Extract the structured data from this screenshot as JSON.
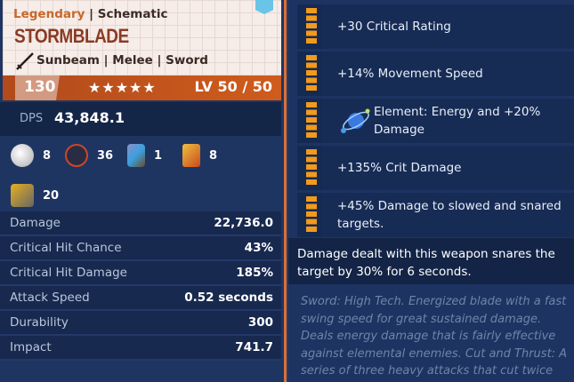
{
  "header": {
    "rarity": "Legendary",
    "separator": "|",
    "type": "Schematic",
    "name": "STORMBLADE",
    "subtitle": "Sunbeam | Melee | Sword",
    "power": "130",
    "stars": "★★★★★",
    "star_count": 5,
    "level": "LV 50 / 50"
  },
  "dps": {
    "label": "DPS",
    "value": "43,848.1"
  },
  "materials": [
    {
      "icon": "silver-ore-icon",
      "count": "8"
    },
    {
      "icon": "active-powercell-icon",
      "count": "36"
    },
    {
      "icon": "storm-shard-icon",
      "count": "1"
    },
    {
      "icon": "sunbeam-crystal-icon",
      "count": "8"
    },
    {
      "icon": "mechanical-parts-icon",
      "count": "20"
    }
  ],
  "stats": [
    {
      "label": "Damage",
      "value": "22,736.0"
    },
    {
      "label": "Critical Hit Chance",
      "value": "43%"
    },
    {
      "label": "Critical Hit Damage",
      "value": "185%"
    },
    {
      "label": "Attack Speed",
      "value": "0.52 seconds"
    },
    {
      "label": "Durability",
      "value": "300"
    },
    {
      "label": "Impact",
      "value": "741.7"
    }
  ],
  "perks": [
    {
      "text": "+30 Critical Rating"
    },
    {
      "text": "+14% Movement Speed"
    },
    {
      "text": "Element: Energy and +20% Damage",
      "icon": "energy-element-icon"
    },
    {
      "text": "+135% Crit Damage"
    },
    {
      "text": "+45% Damage to slowed and snared targets."
    }
  ],
  "description": "Damage dealt with this weapon snares the target by 30% for 6 seconds.",
  "lore": "Sword: High Tech. Energized blade with a fast swing speed for great sustained damage. Deals energy damage that is fairly effective against elemental enemies. Cut and Thrust: A series of three heavy attacks that cut twice",
  "colors": {
    "accent": "#cf5c1c",
    "legendary": "#c8682a",
    "pip": "#f39a1c",
    "panel": "#1d3462"
  }
}
